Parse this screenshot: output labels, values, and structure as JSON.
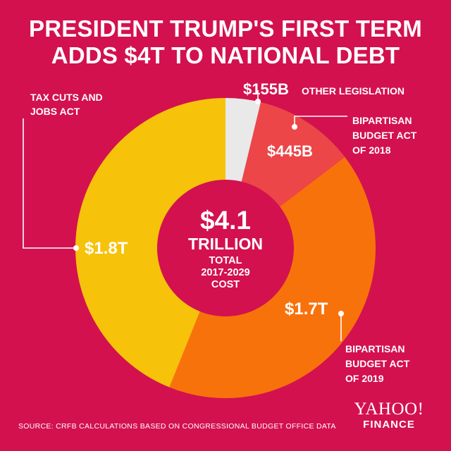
{
  "title_line1": "PRESIDENT TRUMP'S FIRST TERM",
  "title_line2": "ADDS $4T TO NATIONAL DEBT",
  "colors": {
    "background": "#d3114f",
    "slice_tax": "#f6c20a",
    "slice_bba2019": "#f8720c",
    "slice_bba2018": "#ec4648",
    "slice_other": "#e9e9e9",
    "center": "#d3114f"
  },
  "center": {
    "value": "$4.1",
    "unit": "TRILLION",
    "line1": "TOTAL",
    "line2": "2017-2029",
    "line3": "COST"
  },
  "chart_data": {
    "type": "pie",
    "style": "donut",
    "title": "PRESIDENT TRUMP'S FIRST TERM ADDS $4T TO NATIONAL DEBT",
    "unit": "billions USD",
    "slices": [
      {
        "name": "OTHER LEGISLATION",
        "value": 155,
        "value_label": "$155B",
        "color": "#e9e9e9"
      },
      {
        "name": "BIPARTISAN BUDGET ACT OF 2018",
        "value": 445,
        "value_label": "$445B",
        "color": "#ec4648"
      },
      {
        "name": "BIPARTISAN BUDGET ACT OF 2019",
        "value": 1700,
        "value_label": "$1.7T",
        "color": "#f8720c"
      },
      {
        "name": "TAX CUTS AND JOBS ACT",
        "value": 1800,
        "value_label": "$1.8T",
        "color": "#f6c20a"
      }
    ],
    "total_label": "$4.1 TRILLION"
  },
  "labels": {
    "other_value": "$155B",
    "other_name": "OTHER LEGISLATION",
    "bba2018_value": "$445B",
    "bba2018_line1": "BIPARTISAN",
    "bba2018_line2": "BUDGET ACT",
    "bba2018_line3": "OF 2018",
    "tax_value": "$1.8T",
    "tax_line1": "TAX CUTS AND",
    "tax_line2": "JOBS ACT",
    "bba2019_value": "$1.7T",
    "bba2019_line1": "BIPARTISAN",
    "bba2019_line2": "BUDGET ACT",
    "bba2019_line3": "OF 2019"
  },
  "source": "SOURCE:  CRFB CALCULATIONS BASED ON CONGRESSIONAL BUDGET OFFICE DATA",
  "logo": {
    "brand": "YAHOO!",
    "sub": "FINANCE"
  }
}
